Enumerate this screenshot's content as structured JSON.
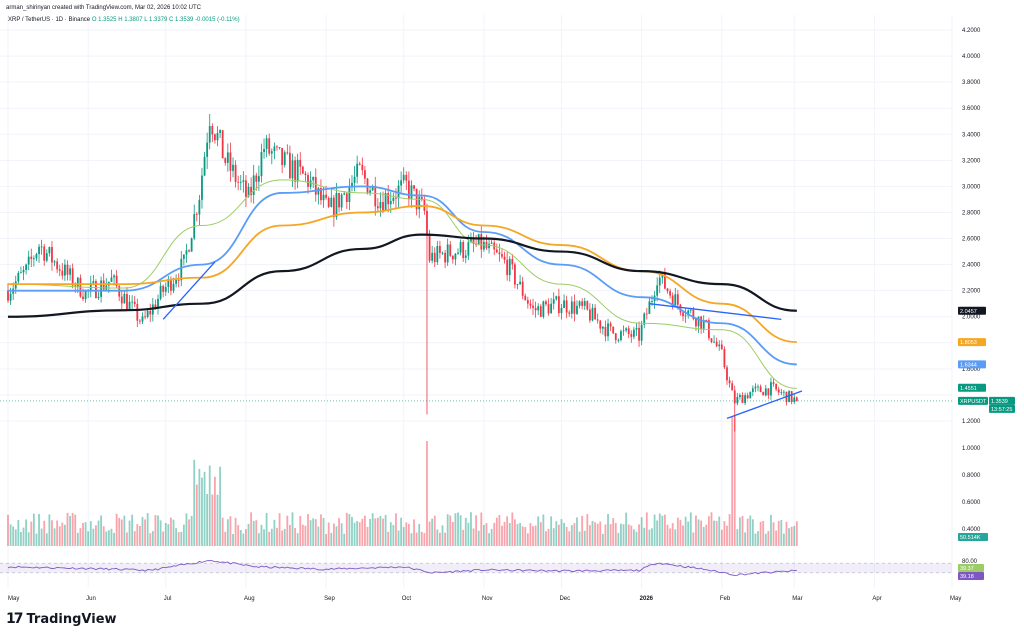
{
  "header": {
    "credit": "arman_shirinyan created with TradingView.com, Mar 02, 2026 10:02 UTC",
    "symbol": "XRP / TetherUS · 1D · Binance",
    "open": "O 1.3525",
    "high": "H 1.3807",
    "low": "L 1.3379",
    "close": "C 1.3539",
    "change": "-0.0015 (-0.11%)"
  },
  "brand": {
    "name": "TradingView",
    "mark": "17"
  },
  "colors": {
    "up": "#089981",
    "down": "#f23645",
    "ma_fast": "#9ccc65",
    "ma_mid": "#5b9cf6",
    "ma_orange": "#f5a623",
    "ma_slow": "#131722",
    "trendline": "#2962ff",
    "rsi": "#7e57c2"
  },
  "chart_data": {
    "type": "candlestick",
    "title": "XRP / TetherUS · 1D · Binance",
    "x_axis": {
      "tick_labels": [
        "May",
        "Jun",
        "Jul",
        "Aug",
        "Sep",
        "Oct",
        "Nov",
        "Dec",
        "2026",
        "Feb",
        "Mar",
        "Apr",
        "May"
      ]
    },
    "y_axis": {
      "tick_labels": [
        "4.2000",
        "4.0000",
        "3.8000",
        "3.6000",
        "3.4000",
        "3.2000",
        "3.0000",
        "2.8000",
        "2.6000",
        "2.4000",
        "2.2000",
        "2.0000",
        "1.8000",
        "1.6000",
        "1.4000",
        "1.2000",
        "1.0000",
        "0.8000",
        "0.6000",
        "0.4000"
      ],
      "range": [
        0.4,
        4.2
      ]
    },
    "price_keypoints": [
      [
        "2025-05-01",
        2.2
      ],
      [
        "2025-05-08",
        2.35
      ],
      [
        "2025-05-13",
        2.55
      ],
      [
        "2025-05-20",
        2.4
      ],
      [
        "2025-05-31",
        2.18
      ],
      [
        "2025-06-10",
        2.28
      ],
      [
        "2025-06-22",
        1.95
      ],
      [
        "2025-06-30",
        2.2
      ],
      [
        "2025-07-08",
        2.4
      ],
      [
        "2025-07-14",
        2.95
      ],
      [
        "2025-07-18",
        3.55
      ],
      [
        "2025-07-24",
        3.2
      ],
      [
        "2025-08-02",
        2.9
      ],
      [
        "2025-08-08",
        3.3
      ],
      [
        "2025-08-14",
        3.2
      ],
      [
        "2025-08-25",
        3.05
      ],
      [
        "2025-09-02",
        2.8
      ],
      [
        "2025-09-14",
        3.1
      ],
      [
        "2025-09-22",
        2.9
      ],
      [
        "2025-10-02",
        3.0
      ],
      [
        "2025-10-09",
        2.8
      ],
      [
        "2025-10-11",
        2.45
      ],
      [
        "2025-10-20",
        2.5
      ],
      [
        "2025-10-31",
        2.55
      ],
      [
        "2025-11-10",
        2.4
      ],
      [
        "2025-11-20",
        2.05
      ],
      [
        "2025-12-01",
        2.1
      ],
      [
        "2025-12-10",
        2.05
      ],
      [
        "2025-12-20",
        1.88
      ],
      [
        "2025-12-31",
        1.85
      ],
      [
        "2026-01-05",
        2.15
      ],
      [
        "2026-01-07",
        2.32
      ],
      [
        "2026-01-15",
        2.1
      ],
      [
        "2026-01-25",
        1.95
      ],
      [
        "2026-02-01",
        1.7
      ],
      [
        "2026-02-05",
        1.4
      ],
      [
        "2026-02-06",
        1.35
      ],
      [
        "2026-02-12",
        1.42
      ],
      [
        "2026-02-20",
        1.45
      ],
      [
        "2026-03-02",
        1.354
      ]
    ],
    "notable_wicks": [
      [
        "2025-10-10",
        1.25
      ],
      [
        "2026-02-06",
        1.12
      ]
    ],
    "moving_averages": [
      {
        "color": "#9ccc65",
        "points": [
          [
            "2025-05-01",
            2.25
          ],
          [
            "2025-06-15",
            2.22
          ],
          [
            "2025-07-15",
            2.7
          ],
          [
            "2025-08-15",
            3.05
          ],
          [
            "2025-09-15",
            2.95
          ],
          [
            "2025-10-08",
            2.9
          ],
          [
            "2025-11-01",
            2.55
          ],
          [
            "2025-12-01",
            2.25
          ],
          [
            "2026-01-01",
            1.95
          ],
          [
            "2026-02-01",
            1.9
          ],
          [
            "2026-03-02",
            1.45
          ]
        ]
      },
      {
        "color": "#5b9cf6",
        "points": [
          [
            "2025-05-01",
            2.2
          ],
          [
            "2025-06-15",
            2.2
          ],
          [
            "2025-07-15",
            2.4
          ],
          [
            "2025-08-15",
            2.95
          ],
          [
            "2025-09-15",
            3.0
          ],
          [
            "2025-10-08",
            2.93
          ],
          [
            "2025-11-01",
            2.65
          ],
          [
            "2025-12-01",
            2.4
          ],
          [
            "2026-01-01",
            2.15
          ],
          [
            "2026-02-01",
            1.95
          ],
          [
            "2026-03-02",
            1.634
          ]
        ]
      },
      {
        "color": "#f5a623",
        "points": [
          [
            "2025-05-01",
            2.25
          ],
          [
            "2025-06-15",
            2.25
          ],
          [
            "2025-07-15",
            2.3
          ],
          [
            "2025-08-15",
            2.7
          ],
          [
            "2025-09-15",
            2.8
          ],
          [
            "2025-10-08",
            2.85
          ],
          [
            "2025-11-01",
            2.7
          ],
          [
            "2025-12-01",
            2.55
          ],
          [
            "2026-01-01",
            2.35
          ],
          [
            "2026-02-01",
            2.1
          ],
          [
            "2026-03-02",
            1.805
          ]
        ]
      },
      {
        "color": "#131722",
        "points": [
          [
            "2025-05-01",
            2.0
          ],
          [
            "2025-06-15",
            2.05
          ],
          [
            "2025-07-15",
            2.1
          ],
          [
            "2025-08-15",
            2.35
          ],
          [
            "2025-09-15",
            2.52
          ],
          [
            "2025-10-08",
            2.63
          ],
          [
            "2025-11-01",
            2.6
          ],
          [
            "2025-12-01",
            2.5
          ],
          [
            "2026-01-01",
            2.35
          ],
          [
            "2026-02-01",
            2.25
          ],
          [
            "2026-03-02",
            2.046
          ]
        ]
      }
    ],
    "trendlines": [
      {
        "from": [
          "2026-02-03",
          1.22
        ],
        "to": [
          "2026-03-04",
          1.43
        ]
      },
      {
        "from": [
          "2026-01-04",
          2.1
        ],
        "to": [
          "2026-02-24",
          1.98
        ]
      },
      {
        "from": [
          "2025-06-30",
          1.98
        ],
        "to": [
          "2025-07-20",
          2.42
        ]
      }
    ],
    "price_labels": [
      {
        "text": "2.0457",
        "bg": "#131722"
      },
      {
        "text": "1.8053",
        "bg": "#f5a623"
      },
      {
        "text": "1.6344",
        "bg": "#5b9cf6"
      },
      {
        "text": "1.4551",
        "bg": "#089981"
      },
      {
        "text": "XRPUSDT",
        "bg": "#089981"
      },
      {
        "text": "1.3539",
        "bg": "#089981"
      },
      {
        "text": "13:57:25",
        "bg": "#089981"
      }
    ],
    "volume": {
      "label": "50.514K"
    },
    "rsi": {
      "tick_labels": [
        "80.00"
      ],
      "last_values": [
        "39.37",
        "39.18"
      ],
      "keypoints": [
        [
          "2025-05-01",
          55
        ],
        [
          "2025-06-01",
          48
        ],
        [
          "2025-06-25",
          40
        ],
        [
          "2025-07-18",
          82
        ],
        [
          "2025-08-05",
          55
        ],
        [
          "2025-09-01",
          45
        ],
        [
          "2025-10-01",
          55
        ],
        [
          "2025-10-12",
          30
        ],
        [
          "2025-11-01",
          42
        ],
        [
          "2025-12-01",
          38
        ],
        [
          "2025-12-31",
          40
        ],
        [
          "2026-01-07",
          72
        ],
        [
          "2026-01-25",
          45
        ],
        [
          "2026-02-06",
          22
        ],
        [
          "2026-03-02",
          39
        ]
      ]
    }
  }
}
